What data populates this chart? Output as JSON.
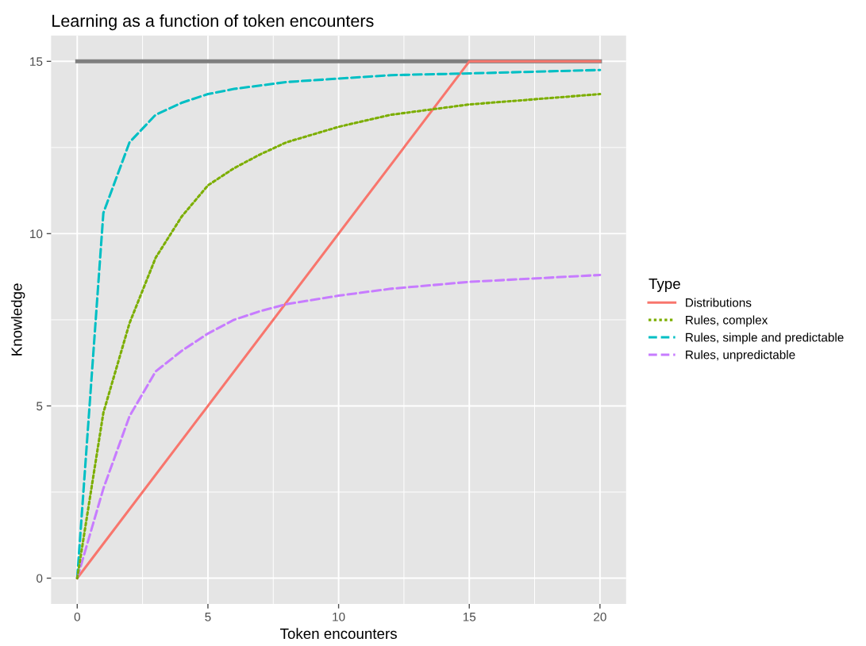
{
  "chart_data": {
    "type": "line",
    "title": "Learning as a function of token encounters",
    "xlabel": "Token encounters",
    "ylabel": "Knowledge",
    "legend_title": "Type",
    "xlim": [
      -1,
      21
    ],
    "ylim": [
      -0.75,
      15.75
    ],
    "xticks": [
      0,
      5,
      10,
      15,
      20
    ],
    "yticks": [
      0,
      5,
      10,
      15
    ],
    "grid": true,
    "legend": "right",
    "marker": "none",
    "series": [
      {
        "color": "#7f7f7f",
        "line_style": "solid",
        "x": [
          0,
          20
        ],
        "values": [
          15,
          15
        ]
      },
      {
        "name": "Distributions",
        "color": "#f8766d",
        "line_style": "solid",
        "x": [
          0,
          15,
          20
        ],
        "values": [
          0,
          15,
          15
        ]
      },
      {
        "name": "Rules, complex",
        "color": "#7cae00",
        "line_style": "dotted",
        "x": [
          0,
          1,
          2,
          3,
          4,
          5,
          6,
          7,
          8,
          10,
          12,
          15,
          20
        ],
        "values": [
          0,
          4.8,
          7.4,
          9.3,
          10.5,
          11.4,
          11.9,
          12.3,
          12.65,
          13.1,
          13.45,
          13.75,
          14.05
        ]
      },
      {
        "name": "Rules, simple and predictable",
        "color": "#00bfc4",
        "line_style": "dashed",
        "x": [
          0,
          1,
          2,
          3,
          4,
          5,
          6,
          7,
          8,
          10,
          12,
          15,
          20
        ],
        "values": [
          0,
          10.6,
          12.65,
          13.45,
          13.8,
          14.05,
          14.2,
          14.3,
          14.4,
          14.5,
          14.6,
          14.65,
          14.75
        ]
      },
      {
        "name": "Rules, unpredictable",
        "color": "#c77cff",
        "line_style": "dashed",
        "x": [
          0,
          1,
          2,
          3,
          4,
          5,
          6,
          7,
          8,
          10,
          12,
          15,
          20
        ],
        "values": [
          0,
          2.6,
          4.7,
          6.0,
          6.6,
          7.1,
          7.5,
          7.75,
          7.95,
          8.2,
          8.4,
          8.6,
          8.8
        ]
      }
    ]
  }
}
